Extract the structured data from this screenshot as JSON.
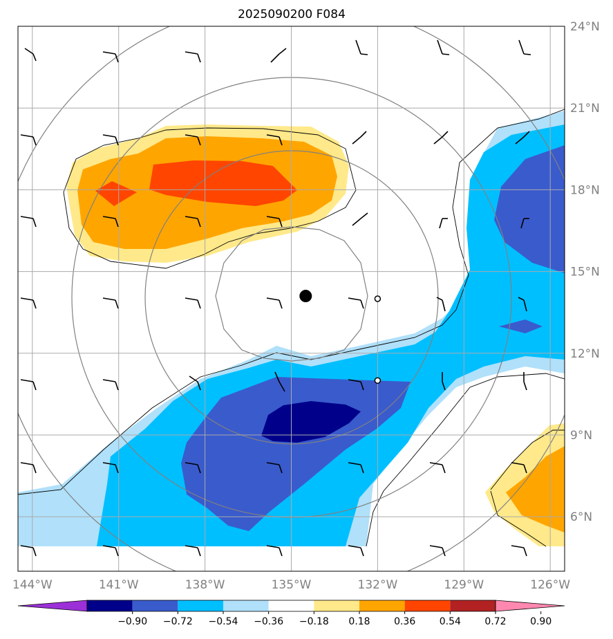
{
  "title": "2025090200 F084",
  "map": {
    "lon_range": [
      -144.5,
      -125.5
    ],
    "lat_range": [
      4,
      24
    ],
    "lon_labels": [
      "144°W",
      "141°W",
      "138°W",
      "135°W",
      "132°W",
      "129°W",
      "126°W"
    ],
    "lat_labels": [
      "24°N",
      "21°N",
      "18°N",
      "15°N",
      "12°N",
      "9°N",
      "6°N"
    ],
    "storm_center": {
      "lon": -134.5,
      "lat": 14.1
    },
    "markers": [
      {
        "lon": -132.0,
        "lat": 14.0
      },
      {
        "lon": -132.0,
        "lat": 11.0
      }
    ]
  },
  "colorbar": {
    "ticks": [
      "−0.90",
      "−0.72",
      "−0.54",
      "−0.36",
      "−0.18",
      "0.18",
      "0.36",
      "0.54",
      "0.72",
      "0.90"
    ],
    "colors": [
      "#9b30d8",
      "#00008b",
      "#3a5bcc",
      "#00bfff",
      "#b0e0fa",
      "#ffffff",
      "#ffe98a",
      "#ffa500",
      "#ff4500",
      "#b22222",
      "#ff88b0"
    ]
  }
}
